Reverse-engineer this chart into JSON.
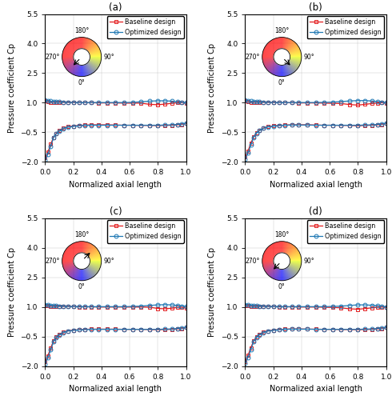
{
  "panels": [
    "(a)",
    "(b)",
    "(c)",
    "(d)"
  ],
  "ylim": [
    -2.0,
    5.5
  ],
  "xlim": [
    0.0,
    1.0
  ],
  "yticks": [
    -2.0,
    -0.5,
    1.0,
    2.5,
    4.0,
    5.5
  ],
  "xticks": [
    0.0,
    0.2,
    0.4,
    0.6,
    0.8,
    1.0
  ],
  "xlabel": "Normalized axial length",
  "ylabel": "Pressure coefficient Cp",
  "legend_labels": [
    "Baseline design",
    "Optimized design"
  ],
  "baseline_color": "#e31a1c",
  "optimized_color": "#1f78b4",
  "arrow_angles_deg": [
    315,
    45,
    135,
    90
  ],
  "x_data": [
    0.0,
    0.02,
    0.04,
    0.06,
    0.08,
    0.1,
    0.13,
    0.16,
    0.2,
    0.24,
    0.28,
    0.33,
    0.38,
    0.44,
    0.5,
    0.56,
    0.62,
    0.68,
    0.74,
    0.8,
    0.85,
    0.9,
    0.94,
    0.97,
    1.0
  ],
  "baseline_upper_a": [
    1.08,
    1.05,
    1.03,
    1.02,
    1.02,
    1.02,
    1.02,
    1.02,
    1.01,
    1.0,
    1.0,
    1.0,
    0.99,
    0.99,
    0.99,
    0.98,
    0.98,
    0.98,
    0.92,
    0.9,
    0.93,
    0.97,
    1.0,
    1.0,
    0.97
  ],
  "optimized_upper_a": [
    1.12,
    1.1,
    1.08,
    1.06,
    1.05,
    1.04,
    1.03,
    1.02,
    1.02,
    1.01,
    1.01,
    1.01,
    1.01,
    1.01,
    1.01,
    1.01,
    1.02,
    1.05,
    1.08,
    1.1,
    1.1,
    1.08,
    1.05,
    1.02,
    1.0
  ],
  "baseline_lower_a": [
    -1.8,
    -1.5,
    -1.1,
    -0.75,
    -0.55,
    -0.42,
    -0.3,
    -0.22,
    -0.18,
    -0.15,
    -0.13,
    -0.12,
    -0.12,
    -0.12,
    -0.13,
    -0.14,
    -0.14,
    -0.15,
    -0.15,
    -0.16,
    -0.15,
    -0.14,
    -0.12,
    -0.1,
    -0.05
  ],
  "optimized_lower_a": [
    -1.9,
    -1.6,
    -1.2,
    -0.78,
    -0.58,
    -0.45,
    -0.32,
    -0.24,
    -0.2,
    -0.17,
    -0.15,
    -0.14,
    -0.14,
    -0.14,
    -0.14,
    -0.14,
    -0.14,
    -0.14,
    -0.14,
    -0.14,
    -0.13,
    -0.12,
    -0.1,
    -0.08,
    -0.03
  ],
  "baseline_upper_b": [
    1.08,
    1.05,
    1.03,
    1.02,
    1.02,
    1.02,
    1.02,
    1.02,
    1.01,
    1.0,
    1.0,
    1.0,
    0.99,
    0.99,
    0.99,
    0.98,
    0.97,
    0.96,
    0.91,
    0.88,
    0.92,
    0.96,
    0.99,
    1.0,
    0.97
  ],
  "optimized_upper_b": [
    1.12,
    1.1,
    1.08,
    1.06,
    1.05,
    1.04,
    1.03,
    1.02,
    1.02,
    1.01,
    1.01,
    1.01,
    1.01,
    1.01,
    1.01,
    1.02,
    1.03,
    1.06,
    1.09,
    1.11,
    1.11,
    1.09,
    1.06,
    1.03,
    1.0
  ],
  "baseline_lower_b": [
    -1.75,
    -1.45,
    -1.05,
    -0.72,
    -0.52,
    -0.4,
    -0.28,
    -0.22,
    -0.17,
    -0.15,
    -0.13,
    -0.12,
    -0.12,
    -0.12,
    -0.13,
    -0.14,
    -0.14,
    -0.15,
    -0.15,
    -0.17,
    -0.15,
    -0.14,
    -0.12,
    -0.1,
    -0.05
  ],
  "optimized_lower_b": [
    -1.85,
    -1.55,
    -1.15,
    -0.75,
    -0.55,
    -0.42,
    -0.3,
    -0.23,
    -0.19,
    -0.16,
    -0.14,
    -0.13,
    -0.13,
    -0.13,
    -0.14,
    -0.14,
    -0.14,
    -0.14,
    -0.14,
    -0.14,
    -0.13,
    -0.12,
    -0.1,
    -0.08,
    -0.03
  ],
  "baseline_upper_c": [
    1.08,
    1.05,
    1.03,
    1.02,
    1.02,
    1.02,
    1.02,
    1.02,
    1.01,
    1.0,
    1.0,
    1.0,
    0.99,
    0.99,
    0.99,
    0.99,
    0.99,
    0.99,
    0.98,
    0.92,
    0.9,
    0.93,
    0.97,
    0.98,
    0.93
  ],
  "optimized_upper_c": [
    1.12,
    1.1,
    1.08,
    1.06,
    1.05,
    1.04,
    1.03,
    1.02,
    1.02,
    1.01,
    1.01,
    1.01,
    1.01,
    1.01,
    1.01,
    1.01,
    1.02,
    1.04,
    1.07,
    1.1,
    1.11,
    1.1,
    1.07,
    1.04,
    1.02
  ],
  "baseline_lower_c": [
    -1.78,
    -1.48,
    -1.08,
    -0.73,
    -0.53,
    -0.41,
    -0.29,
    -0.22,
    -0.18,
    -0.16,
    -0.14,
    -0.13,
    -0.13,
    -0.13,
    -0.13,
    -0.14,
    -0.14,
    -0.14,
    -0.15,
    -0.16,
    -0.15,
    -0.14,
    -0.12,
    -0.1,
    -0.05
  ],
  "optimized_lower_c": [
    -1.88,
    -1.58,
    -1.18,
    -0.77,
    -0.57,
    -0.44,
    -0.31,
    -0.23,
    -0.19,
    -0.17,
    -0.15,
    -0.14,
    -0.14,
    -0.14,
    -0.14,
    -0.14,
    -0.14,
    -0.14,
    -0.14,
    -0.14,
    -0.13,
    -0.12,
    -0.1,
    -0.08,
    -0.03
  ],
  "baseline_upper_d": [
    1.08,
    1.05,
    1.03,
    1.02,
    1.02,
    1.02,
    1.02,
    1.02,
    1.01,
    1.0,
    1.0,
    1.0,
    0.99,
    0.99,
    0.99,
    0.98,
    0.97,
    0.95,
    0.9,
    0.88,
    0.91,
    0.95,
    0.98,
    0.99,
    0.97
  ],
  "optimized_upper_d": [
    1.12,
    1.1,
    1.08,
    1.06,
    1.05,
    1.04,
    1.03,
    1.02,
    1.02,
    1.01,
    1.01,
    1.01,
    1.01,
    1.01,
    1.01,
    1.01,
    1.02,
    1.04,
    1.07,
    1.1,
    1.1,
    1.08,
    1.06,
    1.03,
    1.0
  ],
  "baseline_lower_d": [
    -1.76,
    -1.46,
    -1.07,
    -0.73,
    -0.52,
    -0.4,
    -0.28,
    -0.22,
    -0.18,
    -0.15,
    -0.13,
    -0.12,
    -0.12,
    -0.13,
    -0.13,
    -0.14,
    -0.14,
    -0.15,
    -0.15,
    -0.16,
    -0.15,
    -0.14,
    -0.12,
    -0.1,
    -0.05
  ],
  "optimized_lower_d": [
    -1.86,
    -1.56,
    -1.17,
    -0.76,
    -0.56,
    -0.43,
    -0.31,
    -0.23,
    -0.19,
    -0.16,
    -0.14,
    -0.13,
    -0.13,
    -0.13,
    -0.14,
    -0.14,
    -0.14,
    -0.14,
    -0.14,
    -0.14,
    -0.13,
    -0.12,
    -0.1,
    -0.08,
    -0.03
  ]
}
